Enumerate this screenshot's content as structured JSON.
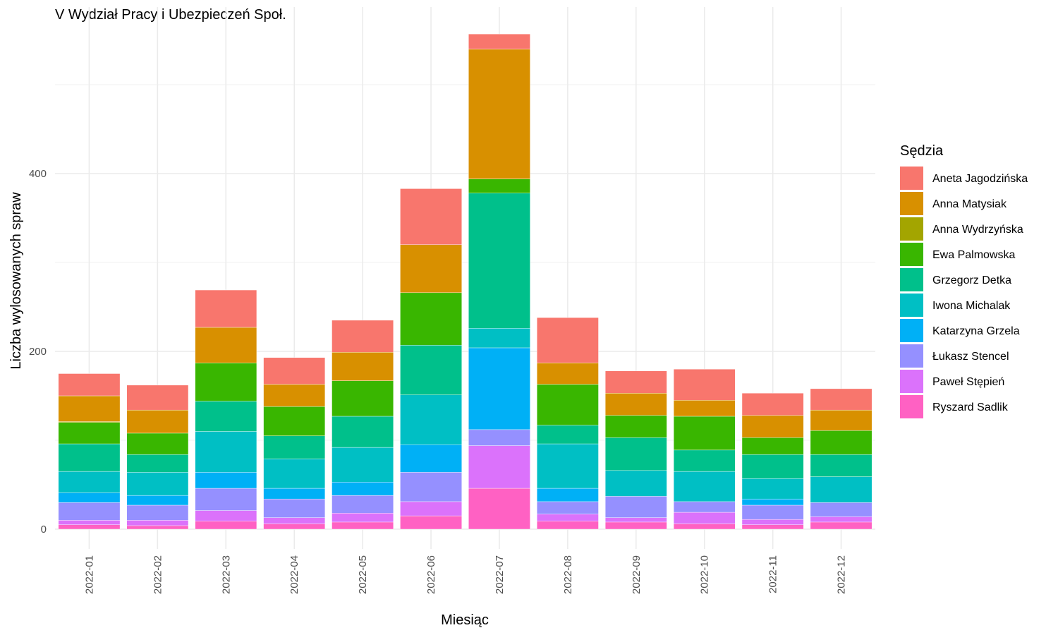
{
  "chart_data": {
    "type": "bar",
    "stacked": true,
    "title": "V Wydział Pracy i Ubezpieczeń Społ.",
    "xlabel": "Miesiąc",
    "ylabel": "Liczba wylosowanych spraw",
    "ylim": [
      -20,
      560
    ],
    "y_ticks": [
      0,
      200,
      400
    ],
    "grid": true,
    "legend": {
      "title": "Sędzia",
      "placement": "right"
    },
    "categories": [
      "2022-01",
      "2022-02",
      "2022-03",
      "2022-04",
      "2022-05",
      "2022-06",
      "2022-07",
      "2022-08",
      "2022-09",
      "2022-10",
      "2022-11",
      "2022-12"
    ],
    "series": [
      {
        "name": "Ryszard Sadlik",
        "color": "#FF61C3",
        "values": [
          5,
          4,
          9,
          6,
          8,
          15,
          46,
          9,
          8,
          6,
          5,
          8
        ]
      },
      {
        "name": "Paweł Stępień",
        "color": "#DB72FB",
        "values": [
          5,
          6,
          12,
          7,
          10,
          16,
          48,
          8,
          5,
          13,
          6,
          6
        ]
      },
      {
        "name": "Łukasz Stencel",
        "color": "#9590FF",
        "values": [
          20,
          17,
          25,
          21,
          20,
          33,
          18,
          14,
          24,
          12,
          16,
          16
        ]
      },
      {
        "name": "Katarzyna Grzela",
        "color": "#00B0F6",
        "values": [
          11,
          11,
          18,
          12,
          15,
          31,
          92,
          15,
          0,
          0,
          7,
          0
        ]
      },
      {
        "name": "Iwona Michalak",
        "color": "#00BFC4",
        "values": [
          24,
          26,
          46,
          33,
          39,
          56,
          22,
          50,
          29,
          34,
          23,
          29
        ]
      },
      {
        "name": "Grzegorz Detka",
        "color": "#00C08B",
        "values": [
          31,
          20,
          34,
          26,
          35,
          56,
          152,
          21,
          37,
          24,
          27,
          25
        ]
      },
      {
        "name": "Ewa Palmowska",
        "color": "#39B600",
        "values": [
          24,
          24,
          43,
          33,
          40,
          59,
          16,
          46,
          25,
          38,
          19,
          27
        ]
      },
      {
        "name": "Anna Wydrzyńska",
        "color": "#A3A500",
        "values": [
          1,
          0,
          0,
          0,
          0,
          0,
          0,
          0,
          0,
          0,
          0,
          0
        ]
      },
      {
        "name": "Anna Matysiak",
        "color": "#D89000",
        "values": [
          29,
          26,
          40,
          25,
          32,
          54,
          146,
          24,
          25,
          18,
          25,
          23
        ]
      },
      {
        "name": "Aneta Jagodzińska",
        "color": "#F8766D",
        "values": [
          25,
          28,
          42,
          30,
          36,
          63,
          17,
          51,
          25,
          35,
          25,
          24
        ]
      }
    ],
    "legend_order": [
      "Aneta Jagodzińska",
      "Anna Matysiak",
      "Anna Wydrzyńska",
      "Ewa Palmowska",
      "Grzegorz Detka",
      "Iwona Michalak",
      "Katarzyna Grzela",
      "Łukasz Stencel",
      "Paweł Stępień",
      "Ryszard Sadlik"
    ]
  }
}
